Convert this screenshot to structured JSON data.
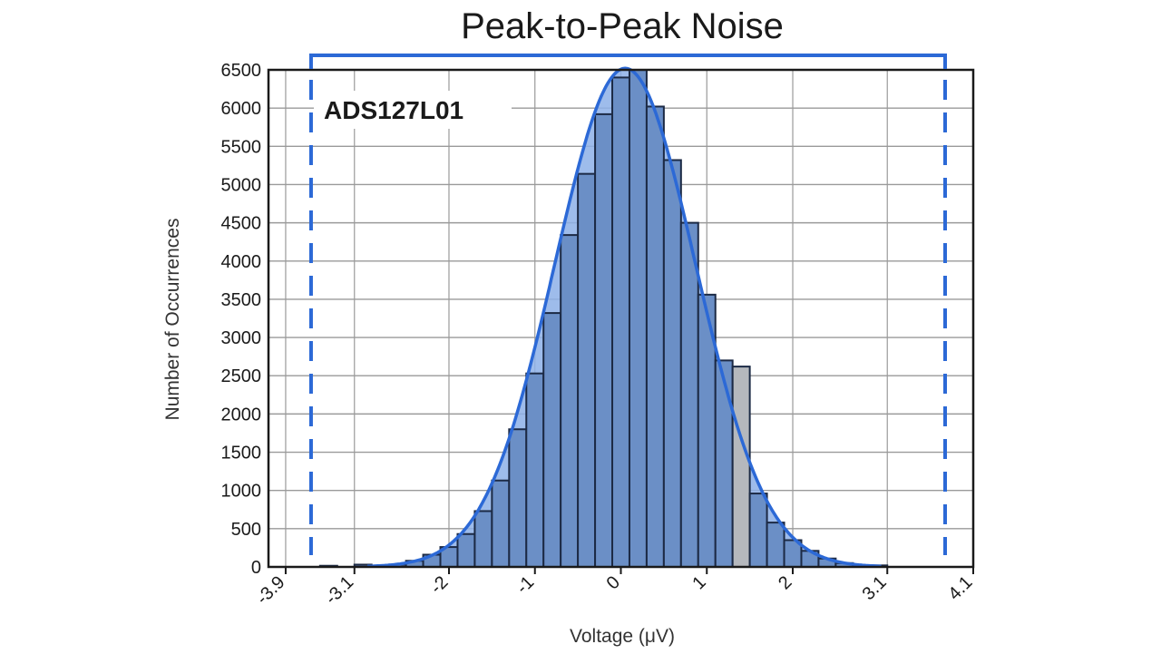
{
  "chart_data": {
    "type": "bar",
    "title": "Peak-to-Peak Noise",
    "xlabel": "Voltage (μV)",
    "ylabel": "Number of Occurrences",
    "annotation": "ADS127L01",
    "xlim": [
      -4.1,
      4.1
    ],
    "ylim": [
      0,
      6500
    ],
    "y_ticks": [
      0,
      500,
      1000,
      1500,
      2000,
      2500,
      3000,
      3500,
      4000,
      4500,
      5000,
      5500,
      6000,
      6500
    ],
    "x_ticks": [
      {
        "value": -3.9,
        "label": "-3.9"
      },
      {
        "value": -3.1,
        "label": "-3.1"
      },
      {
        "value": -2,
        "label": "-2"
      },
      {
        "value": -1,
        "label": "-1"
      },
      {
        "value": 0,
        "label": "0"
      },
      {
        "value": 1,
        "label": "1"
      },
      {
        "value": 2,
        "label": "2"
      },
      {
        "value": 3.1,
        "label": "3.1"
      },
      {
        "value": 4.1,
        "label": "4.1"
      }
    ],
    "grid": true,
    "bin_width": 0.2,
    "bins": [
      {
        "x": -3.4,
        "value": 15
      },
      {
        "x": -3.0,
        "value": 30
      },
      {
        "x": -2.6,
        "value": 30
      },
      {
        "x": -2.4,
        "value": 80
      },
      {
        "x": -2.2,
        "value": 160
      },
      {
        "x": -2.0,
        "value": 260
      },
      {
        "x": -1.8,
        "value": 430
      },
      {
        "x": -1.6,
        "value": 730
      },
      {
        "x": -1.4,
        "value": 1130
      },
      {
        "x": -1.2,
        "value": 1800
      },
      {
        "x": -1.0,
        "value": 2530
      },
      {
        "x": -0.8,
        "value": 3320
      },
      {
        "x": -0.6,
        "value": 4340
      },
      {
        "x": -0.4,
        "value": 5140
      },
      {
        "x": -0.2,
        "value": 5920
      },
      {
        "x": 0.0,
        "value": 6400
      },
      {
        "x": 0.2,
        "value": 6500
      },
      {
        "x": 0.4,
        "value": 6020
      },
      {
        "x": 0.6,
        "value": 5320
      },
      {
        "x": 0.8,
        "value": 4500
      },
      {
        "x": 1.0,
        "value": 3560
      },
      {
        "x": 1.2,
        "value": 2700
      },
      {
        "x": 1.4,
        "value": 2620
      },
      {
        "x": 1.6,
        "value": 960
      },
      {
        "x": 1.8,
        "value": 580
      },
      {
        "x": 2.0,
        "value": 350
      },
      {
        "x": 2.2,
        "value": 210
      },
      {
        "x": 2.4,
        "value": 110
      },
      {
        "x": 2.6,
        "value": 50
      },
      {
        "x": 3.0,
        "value": 20
      }
    ],
    "highlight_bins": [
      22
    ],
    "fit_curve": {
      "type": "gaussian",
      "mean": 0.05,
      "sigma": 0.82,
      "peak": 6520
    },
    "markers": [
      {
        "x": -3.9,
        "style": "dashed"
      },
      {
        "x": 4.1,
        "style": "dashed"
      }
    ],
    "colors": {
      "bar_fill": "#6b8fc6",
      "bar_highlight_fill": "#b5b8bd",
      "bar_stroke": "#1c2a45",
      "curve": "#2c69d6",
      "curve_fill": "#8db0e8",
      "marker": "#2c69d6",
      "grid": "#9a9a9a",
      "axis": "#1a1a1a"
    }
  }
}
